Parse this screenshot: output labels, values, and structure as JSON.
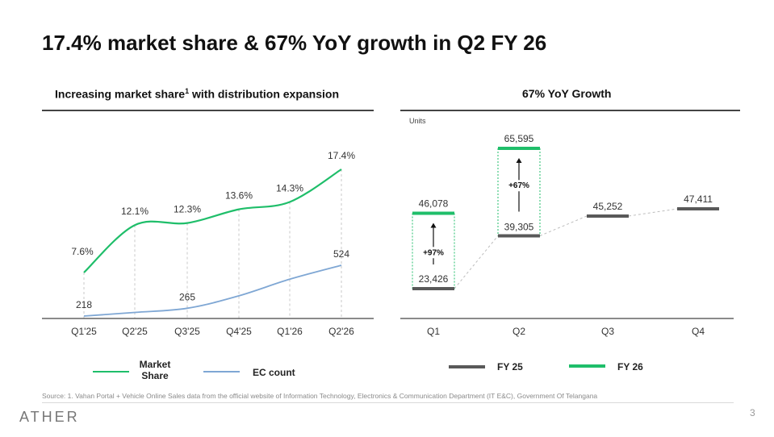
{
  "title": "17.4% market share & 67% YoY growth in Q2 FY 26",
  "left_panel": {
    "heading": "Increasing market share",
    "heading_sup": "1",
    "heading_rest": " with distribution expansion"
  },
  "right_panel": {
    "heading": "67% YoY Growth"
  },
  "footer": {
    "source": "Source: 1. Vahan Portal + Vehicle Online Sales data from the official website of Information Technology, Electronics & Communication Department (IT E&C), Government Of Telangana",
    "logo": "ATHER",
    "page_number": "3"
  },
  "chart_data": [
    {
      "type": "line",
      "title": "Increasing market share with distribution expansion",
      "categories": [
        "Q1'25",
        "Q2'25",
        "Q3'25",
        "Q4'25",
        "Q1'26",
        "Q2'26"
      ],
      "series": [
        {
          "name": "Market Share",
          "legend_lines": [
            "Market",
            "Share"
          ],
          "color": "#1fbe6a",
          "values": [
            7.6,
            12.1,
            12.3,
            13.6,
            14.3,
            17.4
          ],
          "labels": [
            "7.6%",
            "12.1%",
            "12.3%",
            "13.6%",
            "14.3%",
            "17.4%"
          ]
        },
        {
          "name": "EC count",
          "legend_lines": [
            "EC count"
          ],
          "color": "#7fa7d4",
          "values": [
            218,
            240,
            265,
            340,
            440,
            524
          ],
          "labels": [
            "218",
            "",
            "265",
            "",
            "",
            "524"
          ]
        }
      ],
      "grid": false,
      "legend": "bottom"
    },
    {
      "type": "bar",
      "title": "67% YoY Growth",
      "ylabel": "Units",
      "categories": [
        "Q1",
        "Q2",
        "Q3",
        "Q4"
      ],
      "series": [
        {
          "name": "FY 25",
          "color": "#595959",
          "values": [
            23426,
            39305,
            45252,
            47411
          ],
          "labels": [
            "23,426",
            "39,305",
            "45,252",
            "47,411"
          ]
        },
        {
          "name": "FY 26",
          "color": "#1fbe6a",
          "values": [
            46078,
            65595,
            null,
            null
          ],
          "labels": [
            "46,078",
            "65,595",
            "",
            ""
          ]
        }
      ],
      "annotations": [
        {
          "category": "Q1",
          "text": "+97%"
        },
        {
          "category": "Q2",
          "text": "+67%"
        }
      ],
      "legend": "bottom"
    }
  ]
}
